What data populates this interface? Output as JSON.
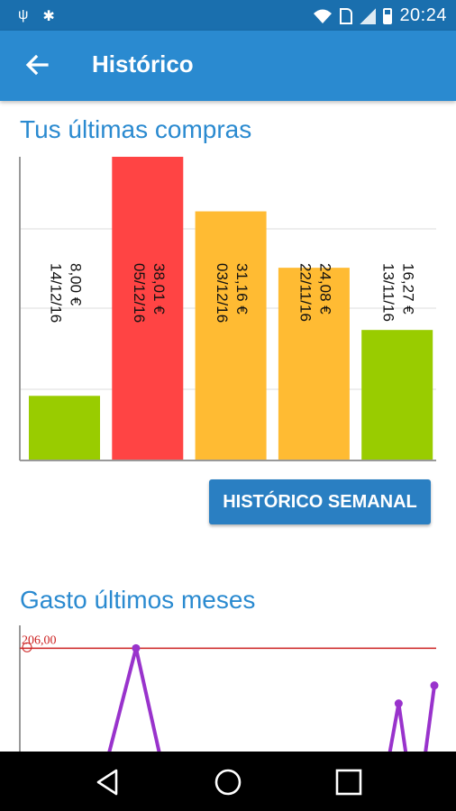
{
  "status_bar": {
    "time": "20:24",
    "icons": [
      "usb-icon",
      "android-debug-icon",
      "wifi-icon",
      "sim-icon",
      "signal-icon",
      "battery-icon"
    ]
  },
  "app_bar": {
    "title": "Histórico"
  },
  "purchases": {
    "title": "Tus últimas compras",
    "button_label": "HISTÓRICO SEMANAL"
  },
  "monthly": {
    "title": "Gasto últimos meses",
    "reference_label": "206,00"
  },
  "colors": {
    "app_bar": "#2a8ad0",
    "status_bar": "#1a6fae",
    "green": "#99cc00",
    "red": "#ff4444",
    "orange": "#ffbb33",
    "purple": "#9933cc"
  },
  "chart_data": [
    {
      "type": "bar",
      "title": "Tus últimas compras",
      "categories": [
        "14/12/16",
        "05/12/16",
        "03/12/16",
        "22/11/16",
        "13/11/16"
      ],
      "values": [
        8.0,
        38.01,
        31.16,
        24.08,
        16.27
      ],
      "labels": [
        "8,00 €",
        "38,01 €",
        "31,16 €",
        "24,08 €",
        "16,27 €"
      ],
      "bar_colors": [
        "#99cc00",
        "#ff4444",
        "#ffbb33",
        "#ffbb33",
        "#99cc00"
      ],
      "ylim": [
        0,
        38.01
      ],
      "grid": true
    },
    {
      "type": "line",
      "title": "Gasto últimos meses",
      "reference_value": 206.0,
      "reference_label": "206,00",
      "x": [
        0,
        1,
        2,
        3,
        4,
        5,
        6,
        7,
        8,
        9,
        10,
        11
      ],
      "values": [
        null,
        null,
        null,
        206.0,
        null,
        null,
        null,
        null,
        null,
        null,
        160.0,
        175.0
      ],
      "ylim": [
        120,
        225
      ]
    }
  ]
}
